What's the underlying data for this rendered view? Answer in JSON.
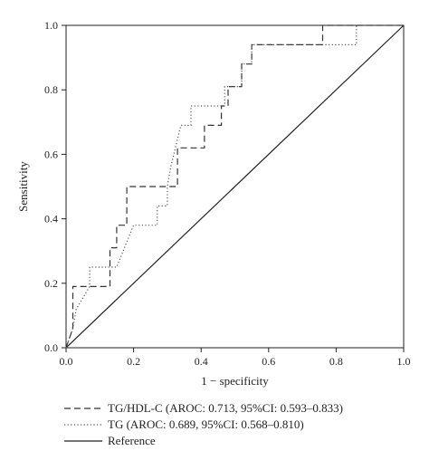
{
  "chart_data": {
    "type": "line",
    "xlabel": "1 − specificity",
    "ylabel": "Sensitivity",
    "xlim": [
      0,
      1
    ],
    "ylim": [
      0,
      1
    ],
    "xticks": [
      "0.0",
      "0.2",
      "0.4",
      "0.6",
      "0.8",
      "1.0"
    ],
    "yticks": [
      "0.0",
      "0.2",
      "0.4",
      "0.6",
      "0.8",
      "1.0"
    ],
    "grid": false,
    "legend_position": "bottom",
    "series": [
      {
        "name": "TG/HDL-C (AROC: 0.713, 95%CI: 0.593–0.833)",
        "style": "dashed",
        "color": "#333333",
        "x": [
          0,
          0.02,
          0.02,
          0.13,
          0.13,
          0.15,
          0.15,
          0.18,
          0.18,
          0.33,
          0.33,
          0.36,
          0.36,
          0.41,
          0.41,
          0.46,
          0.46,
          0.48,
          0.48,
          0.52,
          0.52,
          0.55,
          0.55,
          0.76,
          0.76,
          1.0
        ],
        "y": [
          0,
          0.06,
          0.19,
          0.19,
          0.31,
          0.31,
          0.38,
          0.38,
          0.5,
          0.5,
          0.62,
          0.62,
          0.62,
          0.62,
          0.69,
          0.69,
          0.75,
          0.75,
          0.81,
          0.81,
          0.88,
          0.88,
          0.94,
          0.94,
          1.0,
          1.0
        ]
      },
      {
        "name": "TG (AROC: 0.689, 95%CI: 0.568–0.810)",
        "style": "dotted",
        "color": "#555555",
        "x": [
          0,
          0.02,
          0.02,
          0.03,
          0.03,
          0.07,
          0.07,
          0.15,
          0.15,
          0.2,
          0.2,
          0.27,
          0.27,
          0.3,
          0.3,
          0.31,
          0.31,
          0.34,
          0.34,
          0.37,
          0.37,
          0.39,
          0.39,
          0.47,
          0.47,
          0.49,
          0.49,
          0.52,
          0.52,
          0.55,
          0.55,
          0.58,
          0.58,
          0.86,
          0.86,
          1.0
        ],
        "y": [
          0,
          0.06,
          0.06,
          0.12,
          0.12,
          0.19,
          0.25,
          0.25,
          0.25,
          0.38,
          0.38,
          0.38,
          0.44,
          0.44,
          0.5,
          0.56,
          0.56,
          0.69,
          0.69,
          0.69,
          0.75,
          0.75,
          0.75,
          0.75,
          0.81,
          0.81,
          0.81,
          0.81,
          0.88,
          0.88,
          0.94,
          0.94,
          0.94,
          0.94,
          1.0,
          1.0
        ]
      },
      {
        "name": "Reference",
        "style": "solid",
        "color": "#222222",
        "x": [
          0,
          1
        ],
        "y": [
          0,
          1
        ]
      }
    ]
  }
}
